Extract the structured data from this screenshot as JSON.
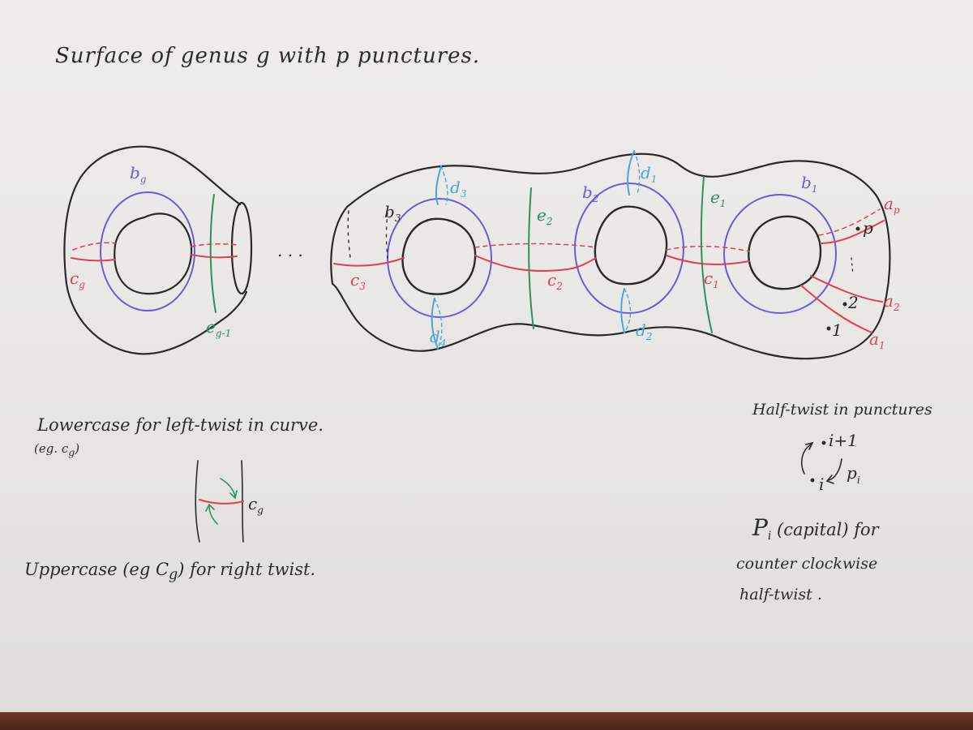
{
  "title": "Surface of genus g with p punctures.",
  "ellipsis": ". . .",
  "colors": {
    "outline": "#2a2a2a",
    "b_curves": "#6b5bd6",
    "c_curves": "#e0404f",
    "d_curves": "#4aa6dd",
    "e_curves": "#2f8f5e",
    "a_curves": "#e0404f",
    "note_arrow": "#2f8f5e"
  },
  "curve_labels": {
    "bg": {
      "main": "b",
      "sub": "g"
    },
    "cg": {
      "main": "c",
      "sub": "g"
    },
    "eg1": {
      "main": "e",
      "sub": "g-1"
    },
    "b3": {
      "main": "b",
      "sub": "3"
    },
    "c3": {
      "main": "c",
      "sub": "3"
    },
    "d3": {
      "main": "d",
      "sub": "3"
    },
    "d4": {
      "main": "d",
      "sub": "4"
    },
    "e2": {
      "main": "e",
      "sub": "2"
    },
    "c2": {
      "main": "c",
      "sub": "2"
    },
    "b2": {
      "main": "b",
      "sub": "2"
    },
    "d1": {
      "main": "d",
      "sub": "1"
    },
    "d2": {
      "main": "d",
      "sub": "2"
    },
    "e1": {
      "main": "e",
      "sub": "1"
    },
    "c1": {
      "main": "c",
      "sub": "1"
    },
    "b1": {
      "main": "b",
      "sub": "1"
    },
    "ap": {
      "main": "a",
      "sub": "p"
    },
    "a2": {
      "main": "a",
      "sub": "2"
    },
    "a1": {
      "main": "a",
      "sub": "1"
    }
  },
  "punctures": {
    "p": "p",
    "two": "2",
    "one": "1"
  },
  "notes": {
    "lowercase": "Lowercase for left-twist in curve.",
    "lowercase_eg": "(eg. c",
    "lowercase_eg_sub": "g",
    "lowercase_eg_close": ")",
    "twist_label": "c",
    "twist_label_sub": "g",
    "uppercase_a": "Uppercase (eg C",
    "uppercase_sub": "g",
    "uppercase_b": ") for right twist.",
    "half_twist_title": "Half-twist in punctures",
    "ht_top": "i+1",
    "ht_bottom": "i",
    "ht_label": "p",
    "ht_label_sub": "i",
    "capital_label": "P",
    "capital_sub": "i",
    "capital_text": "(capital) for",
    "capital_line2": "counter clockwise",
    "capital_line3": "half-twist ."
  }
}
